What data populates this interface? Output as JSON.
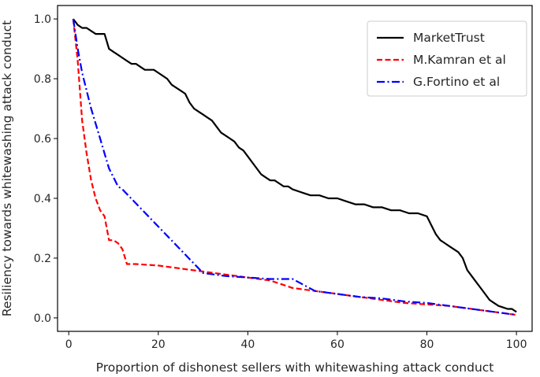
{
  "chart_data": {
    "type": "line",
    "xlabel": "Proportion of dishonest sellers with whitewashing attack conduct",
    "ylabel": "Resiliency towards whitewashing attack conduct",
    "xlim": [
      -2.5,
      103.5
    ],
    "ylim": [
      -0.045,
      1.045
    ],
    "xticks": [
      0,
      20,
      40,
      60,
      80,
      100
    ],
    "yticks": [
      0.0,
      0.2,
      0.4,
      0.6,
      0.8,
      1.0
    ],
    "grid": false,
    "legend_position": "top-right",
    "series": [
      {
        "name": "MarketTrust",
        "color": "#000000",
        "style": "solid",
        "x": [
          1,
          2,
          3,
          4,
          5,
          6,
          7,
          8,
          9,
          10,
          11,
          12,
          13,
          14,
          15,
          16,
          17,
          18,
          19,
          20,
          21,
          22,
          23,
          24,
          25,
          26,
          27,
          28,
          29,
          30,
          31,
          32,
          33,
          34,
          35,
          36,
          37,
          38,
          39,
          40,
          41,
          42,
          43,
          44,
          45,
          46,
          47,
          48,
          49,
          50,
          52,
          54,
          56,
          58,
          60,
          62,
          64,
          66,
          68,
          70,
          72,
          74,
          76,
          78,
          80,
          81,
          82,
          83,
          84,
          85,
          86,
          87,
          88,
          89,
          90,
          91,
          92,
          93,
          94,
          95,
          96,
          97,
          98,
          99,
          100
        ],
        "values": [
          1.0,
          0.98,
          0.97,
          0.97,
          0.96,
          0.95,
          0.95,
          0.95,
          0.9,
          0.89,
          0.88,
          0.87,
          0.86,
          0.85,
          0.85,
          0.84,
          0.83,
          0.83,
          0.83,
          0.82,
          0.81,
          0.8,
          0.78,
          0.77,
          0.76,
          0.75,
          0.72,
          0.7,
          0.69,
          0.68,
          0.67,
          0.66,
          0.64,
          0.62,
          0.61,
          0.6,
          0.59,
          0.57,
          0.56,
          0.54,
          0.52,
          0.5,
          0.48,
          0.47,
          0.46,
          0.46,
          0.45,
          0.44,
          0.44,
          0.43,
          0.42,
          0.41,
          0.41,
          0.4,
          0.4,
          0.39,
          0.38,
          0.38,
          0.37,
          0.37,
          0.36,
          0.36,
          0.35,
          0.35,
          0.34,
          0.31,
          0.28,
          0.26,
          0.25,
          0.24,
          0.23,
          0.22,
          0.2,
          0.16,
          0.14,
          0.12,
          0.1,
          0.08,
          0.06,
          0.05,
          0.04,
          0.035,
          0.03,
          0.03,
          0.02
        ]
      },
      {
        "name": "M.Kamran et al",
        "color": "#ff0000",
        "style": "dashed",
        "x": [
          1,
          2,
          3,
          4,
          5,
          6,
          7,
          8,
          9,
          10,
          11,
          12,
          13,
          15,
          20,
          25,
          30,
          35,
          40,
          45,
          48,
          50,
          55,
          60,
          65,
          70,
          75,
          80,
          85,
          90,
          95,
          100
        ],
        "values": [
          1.0,
          0.86,
          0.66,
          0.55,
          0.46,
          0.4,
          0.36,
          0.34,
          0.26,
          0.26,
          0.25,
          0.23,
          0.18,
          0.18,
          0.175,
          0.165,
          0.155,
          0.145,
          0.135,
          0.125,
          0.11,
          0.1,
          0.09,
          0.08,
          0.07,
          0.06,
          0.05,
          0.045,
          0.04,
          0.03,
          0.02,
          0.01
        ]
      },
      {
        "name": "G.Fortino et al",
        "color": "#0000ff",
        "style": "dashdot",
        "x": [
          1,
          2,
          3,
          4,
          5,
          6,
          7,
          8,
          9,
          10,
          11,
          12,
          30,
          35,
          40,
          45,
          50,
          55,
          60,
          65,
          70,
          75,
          80,
          85,
          90,
          95,
          100
        ],
        "values": [
          1.0,
          0.9,
          0.82,
          0.76,
          0.7,
          0.65,
          0.6,
          0.55,
          0.5,
          0.47,
          0.44,
          0.43,
          0.15,
          0.14,
          0.135,
          0.13,
          0.13,
          0.09,
          0.08,
          0.07,
          0.065,
          0.055,
          0.05,
          0.04,
          0.03,
          0.02,
          0.01
        ]
      }
    ]
  }
}
